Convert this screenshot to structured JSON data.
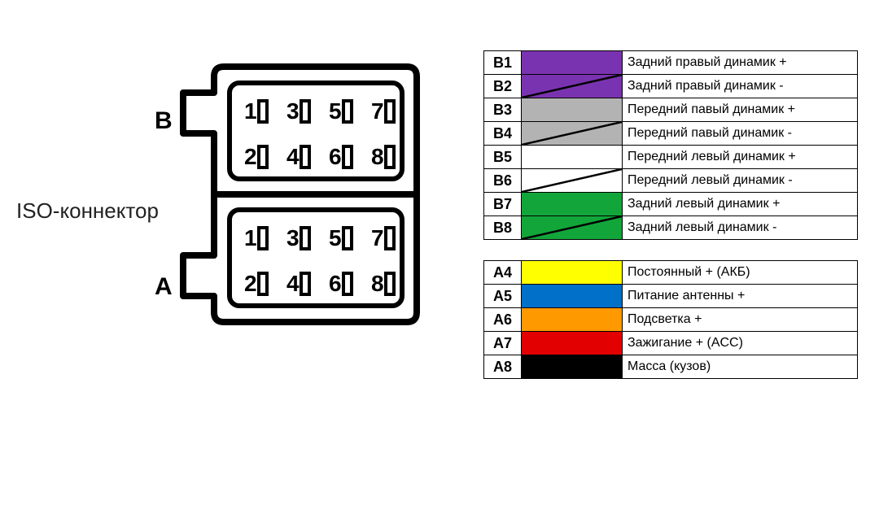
{
  "connector": {
    "title": "ISO-коннектор",
    "section_b_label": "B",
    "section_a_label": "A",
    "pins": [
      "1",
      "2",
      "3",
      "4",
      "5",
      "6",
      "7",
      "8"
    ],
    "outline_color": "#000000",
    "outline_stroke": 6,
    "pin_font_size": 28
  },
  "legend_groups": [
    {
      "rows": [
        {
          "pin": "B1",
          "swatch_bg": "#7a33b0",
          "slash": false,
          "desc": "Задний правый динамик +"
        },
        {
          "pin": "B2",
          "swatch_bg": "#7a33b0",
          "slash": true,
          "desc": "Задний правый динамик -"
        },
        {
          "pin": "B3",
          "swatch_bg": "#b3b3b3",
          "slash": false,
          "desc": "Передний павый динамик +"
        },
        {
          "pin": "B4",
          "swatch_bg": "#b3b3b3",
          "slash": true,
          "desc": "Передний павый динамик -"
        },
        {
          "pin": "B5",
          "swatch_bg": "#ffffff",
          "slash": false,
          "desc": "Передний левый динамик +"
        },
        {
          "pin": "B6",
          "swatch_bg": "#ffffff",
          "slash": true,
          "desc": "Передний левый динамик -"
        },
        {
          "pin": "B7",
          "swatch_bg": "#12a63a",
          "slash": false,
          "desc": "Задний левый динамик +"
        },
        {
          "pin": "B8",
          "swatch_bg": "#12a63a",
          "slash": true,
          "desc": "Задний левый динамик -"
        }
      ]
    },
    {
      "rows": [
        {
          "pin": "A4",
          "swatch_bg": "#ffff00",
          "slash": false,
          "desc": "Постоянный + (АКБ)"
        },
        {
          "pin": "A5",
          "swatch_bg": "#0070c8",
          "slash": false,
          "desc": "Питание антенны +"
        },
        {
          "pin": "A6",
          "swatch_bg": "#ff9900",
          "slash": false,
          "desc": "Подсветка +"
        },
        {
          "pin": "A7",
          "swatch_bg": "#e30000",
          "slash": false,
          "desc": "Зажигание + (ACC)"
        },
        {
          "pin": "A8",
          "swatch_bg": "#000000",
          "slash": false,
          "desc": "Масса (кузов)"
        }
      ]
    }
  ]
}
